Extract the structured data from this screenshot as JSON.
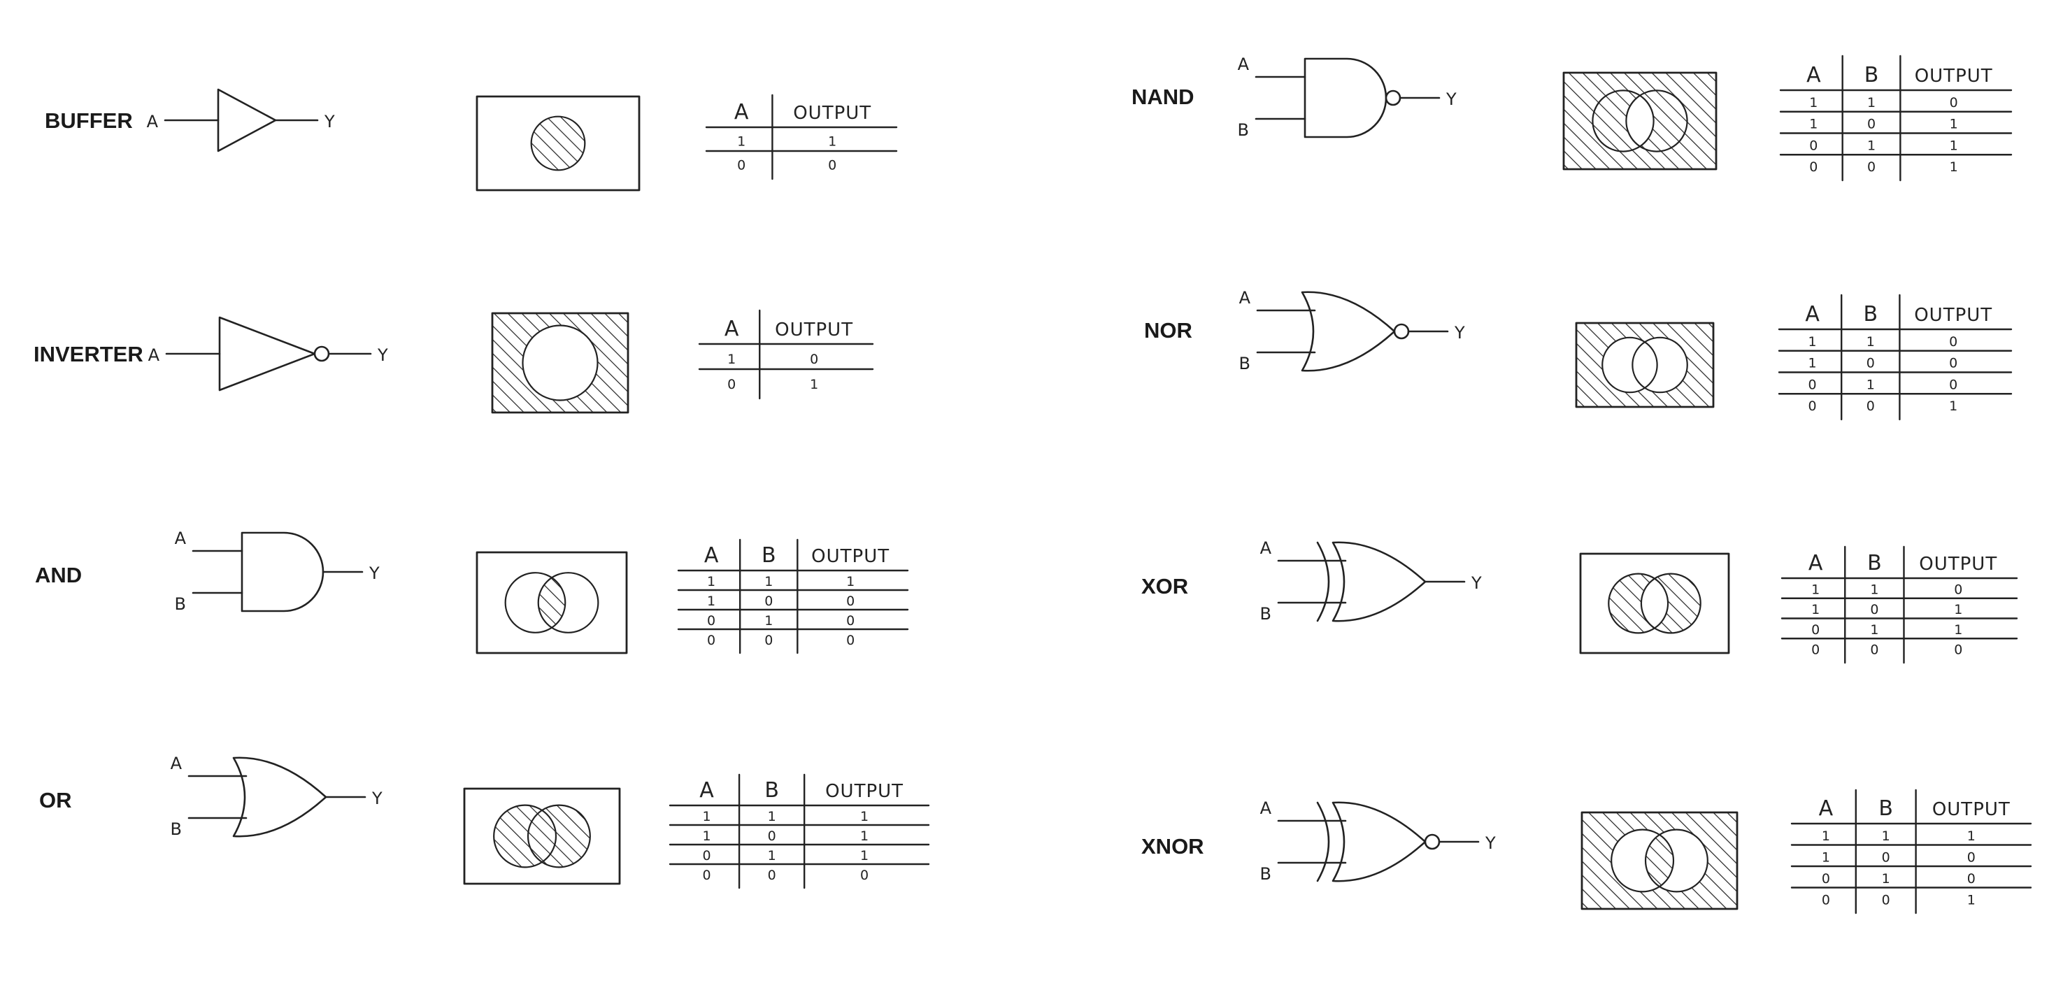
{
  "gates": [
    {
      "id": "buffer",
      "name": "BUFFER",
      "symbol": "buffer",
      "inputs": [
        "A"
      ],
      "output": "Y",
      "venn": "circle-inside",
      "table": {
        "headers": [
          "A",
          "OUTPUT"
        ],
        "rows": [
          [
            "1",
            "1"
          ],
          [
            "0",
            "0"
          ]
        ]
      }
    },
    {
      "id": "inverter",
      "name": "INVERTER",
      "symbol": "inverter",
      "inputs": [
        "A"
      ],
      "output": "Y",
      "venn": "circle-outside",
      "table": {
        "headers": [
          "A",
          "OUTPUT"
        ],
        "rows": [
          [
            "1",
            "0"
          ],
          [
            "0",
            "1"
          ]
        ]
      }
    },
    {
      "id": "and",
      "name": "AND",
      "symbol": "and",
      "inputs": [
        "A",
        "B"
      ],
      "output": "Y",
      "venn": "intersection",
      "table": {
        "headers": [
          "A",
          "B",
          "OUTPUT"
        ],
        "rows": [
          [
            "1",
            "1",
            "1"
          ],
          [
            "1",
            "0",
            "0"
          ],
          [
            "0",
            "1",
            "0"
          ],
          [
            "0",
            "0",
            "0"
          ]
        ]
      }
    },
    {
      "id": "or",
      "name": "OR",
      "symbol": "or",
      "inputs": [
        "A",
        "B"
      ],
      "output": "Y",
      "venn": "union",
      "table": {
        "headers": [
          "A",
          "B",
          "OUTPUT"
        ],
        "rows": [
          [
            "1",
            "1",
            "1"
          ],
          [
            "1",
            "0",
            "1"
          ],
          [
            "0",
            "1",
            "1"
          ],
          [
            "0",
            "0",
            "0"
          ]
        ]
      }
    },
    {
      "id": "nand",
      "name": "NAND",
      "symbol": "nand",
      "inputs": [
        "A",
        "B"
      ],
      "output": "Y",
      "venn": "not-intersection",
      "table": {
        "headers": [
          "A",
          "B",
          "OUTPUT"
        ],
        "rows": [
          [
            "1",
            "1",
            "0"
          ],
          [
            "1",
            "0",
            "1"
          ],
          [
            "0",
            "1",
            "1"
          ],
          [
            "0",
            "0",
            "1"
          ]
        ]
      }
    },
    {
      "id": "nor",
      "name": "NOR",
      "symbol": "nor",
      "inputs": [
        "A",
        "B"
      ],
      "output": "Y",
      "venn": "not-union",
      "table": {
        "headers": [
          "A",
          "B",
          "OUTPUT"
        ],
        "rows": [
          [
            "1",
            "1",
            "0"
          ],
          [
            "1",
            "0",
            "0"
          ],
          [
            "0",
            "1",
            "0"
          ],
          [
            "0",
            "0",
            "1"
          ]
        ]
      }
    },
    {
      "id": "xor",
      "name": "XOR",
      "symbol": "xor",
      "inputs": [
        "A",
        "B"
      ],
      "output": "Y",
      "venn": "symmetric-difference",
      "table": {
        "headers": [
          "A",
          "B",
          "OUTPUT"
        ],
        "rows": [
          [
            "1",
            "1",
            "0"
          ],
          [
            "1",
            "0",
            "1"
          ],
          [
            "0",
            "1",
            "1"
          ],
          [
            "0",
            "0",
            "0"
          ]
        ]
      }
    },
    {
      "id": "xnor",
      "name": "XNOR",
      "symbol": "xnor",
      "inputs": [
        "A",
        "B"
      ],
      "output": "Y",
      "venn": "not-symmetric-difference",
      "table": {
        "headers": [
          "A",
          "B",
          "OUTPUT"
        ],
        "rows": [
          [
            "1",
            "1",
            "1"
          ],
          [
            "1",
            "0",
            "0"
          ],
          [
            "0",
            "1",
            "0"
          ],
          [
            "0",
            "0",
            "1"
          ]
        ]
      }
    }
  ],
  "colors": {
    "ink": "#222222",
    "background": "#ffffff"
  }
}
